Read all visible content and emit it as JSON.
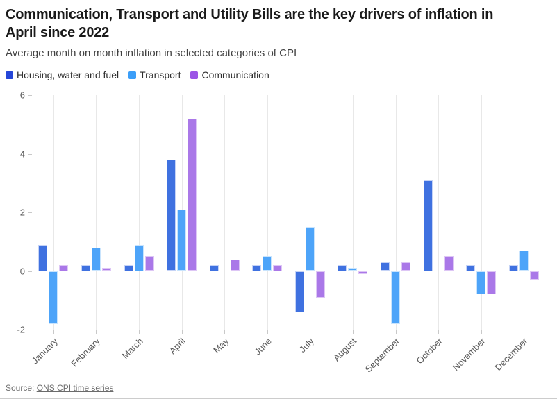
{
  "header": {
    "title": "Communication, Transport and Utility Bills are the key drivers of inflation in April since 2022",
    "subtitle": "Average month on month inflation in selected categories of CPI"
  },
  "source": {
    "prefix": "Source: ",
    "link_text": "ONS CPI time series"
  },
  "chart_data": {
    "type": "bar",
    "title": "Communication, Transport and Utility Bills are the key drivers of inflation in April since 2022",
    "subtitle": "Average month on month inflation in selected categories of CPI",
    "categories": [
      "January",
      "February",
      "March",
      "April",
      "May",
      "June",
      "July",
      "August",
      "September",
      "October",
      "November",
      "December"
    ],
    "series": [
      {
        "name": "Housing, water and fuel",
        "short": "housing",
        "bar_color": "#3f71e0",
        "bar_border": "#c5d3f6",
        "swatch_color": "#2546d8",
        "values": [
          0.9,
          0.2,
          0.2,
          3.8,
          0.2,
          0.2,
          -1.4,
          0.2,
          0.3,
          3.1,
          0.2,
          0.2
        ]
      },
      {
        "name": "Transport",
        "short": "transport",
        "bar_color": "#4da4f9",
        "bar_border": "#c9e4fd",
        "swatch_color": "#3b9ef8",
        "values": [
          -1.8,
          0.8,
          0.9,
          2.1,
          0,
          0.5,
          1.5,
          0.1,
          -1.8,
          0,
          -0.8,
          0.7
        ]
      },
      {
        "name": "Communication",
        "short": "communication",
        "bar_color": "#aa78e8",
        "bar_border": "#ddc6f5",
        "swatch_color": "#9b55e6",
        "values": [
          0.2,
          0.1,
          0.5,
          5.2,
          0.4,
          0.2,
          -0.9,
          -0.1,
          0.3,
          0.5,
          -0.8,
          -0.3
        ]
      }
    ],
    "ylim": [
      -2,
      6
    ],
    "yticks": [
      -2,
      0,
      2,
      4,
      6
    ],
    "grid": "vertical",
    "legend_position": "top",
    "axis_colors": {
      "gridline": "#e8e8e8",
      "axis_line": "#dcdcdc",
      "tick": "#c9c9c9",
      "label": "#595959"
    }
  }
}
